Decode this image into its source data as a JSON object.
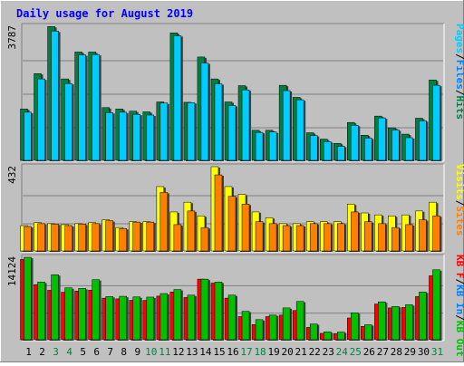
{
  "chart_data": {
    "type": "bar",
    "title": "Daily usage for August 2019",
    "x": [
      1,
      2,
      3,
      4,
      5,
      6,
      7,
      8,
      9,
      10,
      11,
      12,
      13,
      14,
      15,
      16,
      17,
      18,
      19,
      20,
      21,
      22,
      23,
      24,
      25,
      26,
      27,
      28,
      29,
      30,
      31
    ],
    "weekend_days": [
      3,
      4,
      10,
      11,
      17,
      18,
      24,
      25,
      31
    ],
    "panels": [
      {
        "id": "hits-files-pages",
        "max_label": "3787",
        "ymax": 3787,
        "legend": [
          "Pages",
          "/",
          "Files",
          "/",
          "Hits"
        ],
        "legend_colors": [
          "#00ccff",
          "#000000",
          "#0080ff",
          "#000000",
          "#008040"
        ],
        "series": [
          {
            "name": "Hits",
            "color": "#008040",
            "values": [
              1450,
              2450,
              3780,
              2300,
              3060,
              3060,
              1490,
              1450,
              1390,
              1370,
              1650,
              3600,
              1640,
              2920,
              2300,
              1650,
              2110,
              850,
              850,
              2120,
              1780,
              780,
              600,
              480,
              1070,
              710,
              1250,
              920,
              740,
              1190,
              2270
            ]
          },
          {
            "name": "Files",
            "color": "#00ccff",
            "values": [
              1360,
              2300,
              3650,
              2170,
              2980,
              2990,
              1350,
              1360,
              1300,
              1280,
              1620,
              3520,
              1630,
              2750,
              2160,
              1550,
              1990,
              790,
              800,
              1970,
              1710,
              700,
              530,
              400,
              990,
              630,
              1200,
              860,
              640,
              1120,
              2120
            ]
          },
          {
            "name": "Pages",
            "color": "#0080ff",
            "values": [
              0,
              0,
              0,
              0,
              0,
              0,
              0,
              0,
              0,
              0,
              0,
              0,
              0,
              0,
              0,
              0,
              0,
              0,
              0,
              0,
              0,
              0,
              0,
              0,
              0,
              0,
              0,
              0,
              0,
              0,
              0
            ]
          }
        ]
      },
      {
        "id": "visits-sites",
        "max_label": "432",
        "ymax": 432,
        "legend": [
          "Visits",
          "/",
          "Sites"
        ],
        "legend_colors": [
          "#ffff00",
          "#000000",
          "#ff8000"
        ],
        "series": [
          {
            "name": "Visits",
            "color": "#ffff00",
            "values": [
              130,
              145,
              140,
              135,
              140,
              145,
              160,
              120,
              150,
              150,
              330,
              200,
              250,
              180,
              432,
              330,
              290,
              200,
              170,
              140,
              140,
              150,
              150,
              150,
              240,
              195,
              185,
              180,
              185,
              205,
              250
            ]
          },
          {
            "name": "Sites",
            "color": "#ff8000",
            "values": [
              125,
              140,
              138,
              130,
              138,
              140,
              155,
              115,
              148,
              148,
              300,
              135,
              205,
              120,
              390,
              280,
              240,
              150,
              140,
              130,
              130,
              140,
              140,
              140,
              200,
              150,
              140,
              120,
              135,
              160,
              180
            ]
          }
        ]
      },
      {
        "id": "kbytes",
        "max_label": "14124",
        "ymax": 14124,
        "legend": [
          "KB F",
          "/",
          "KB In",
          "/",
          "KB Out"
        ],
        "legend_colors": [
          "#ff0000",
          "#000000",
          "#0080ff",
          "#000000",
          "#00c000"
        ],
        "series": [
          {
            "name": "KB F",
            "color": "#ff0000",
            "values": [
              13750,
              9440,
              8470,
              8140,
              8340,
              8490,
              7120,
              7000,
              6750,
              6730,
              7470,
              8170,
              7230,
              10380,
              9700,
              7120,
              3960,
              2600,
              3960,
              4220,
              5000,
              2110,
              1090,
              1060,
              3730,
              2280,
              6120,
              5450,
              5530,
              7400,
              10960
            ]
          },
          {
            "name": "KB Out",
            "color": "#00c000",
            "values": [
              14120,
              9880,
              11140,
              8880,
              8790,
              10290,
              7400,
              7440,
              7330,
              7300,
              7910,
              8600,
              7640,
              10380,
              9880,
              7640,
              4870,
              3440,
              4220,
              5450,
              6560,
              2700,
              1350,
              1310,
              4610,
              2570,
              6490,
              5700,
              5990,
              8170,
              11980
            ]
          }
        ]
      }
    ]
  }
}
